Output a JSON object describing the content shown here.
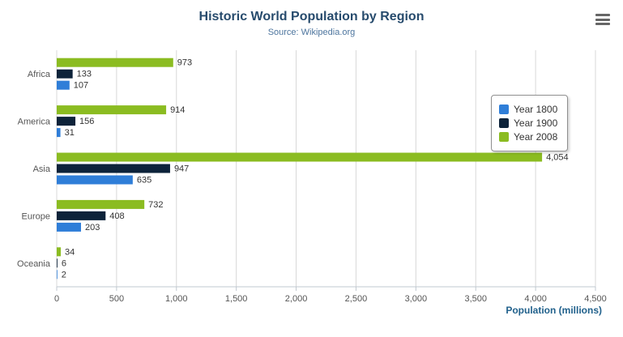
{
  "header": {
    "title": "Historic World Population by Region",
    "subtitle": "Source: Wikipedia.org"
  },
  "export_menu": {
    "icon": "hamburger-icon"
  },
  "chart_data": {
    "type": "bar",
    "orientation": "horizontal",
    "title": "Historic World Population by Region",
    "subtitle": "Source: Wikipedia.org",
    "categories": [
      "Africa",
      "America",
      "Asia",
      "Europe",
      "Oceania"
    ],
    "series": [
      {
        "name": "Year 1800",
        "color": "#2f7ed8",
        "values": [
          107,
          31,
          635,
          203,
          2
        ]
      },
      {
        "name": "Year 1900",
        "color": "#0d233a",
        "values": [
          133,
          156,
          947,
          408,
          6
        ]
      },
      {
        "name": "Year 2008",
        "color": "#8bbc21",
        "values": [
          973,
          914,
          4054,
          732,
          34
        ]
      }
    ],
    "xlabel": "Population (millions)",
    "ylabel": "",
    "xlim": [
      0,
      4500
    ],
    "xtick_step": 500,
    "grid": true,
    "legend_position": "right",
    "data_labels": true,
    "colors": {
      "gridline": "#d8d8d8",
      "axis_line": "#c0c8d0",
      "axis_label": "#555555",
      "category_label": "#555555",
      "data_label": "#333333"
    }
  }
}
